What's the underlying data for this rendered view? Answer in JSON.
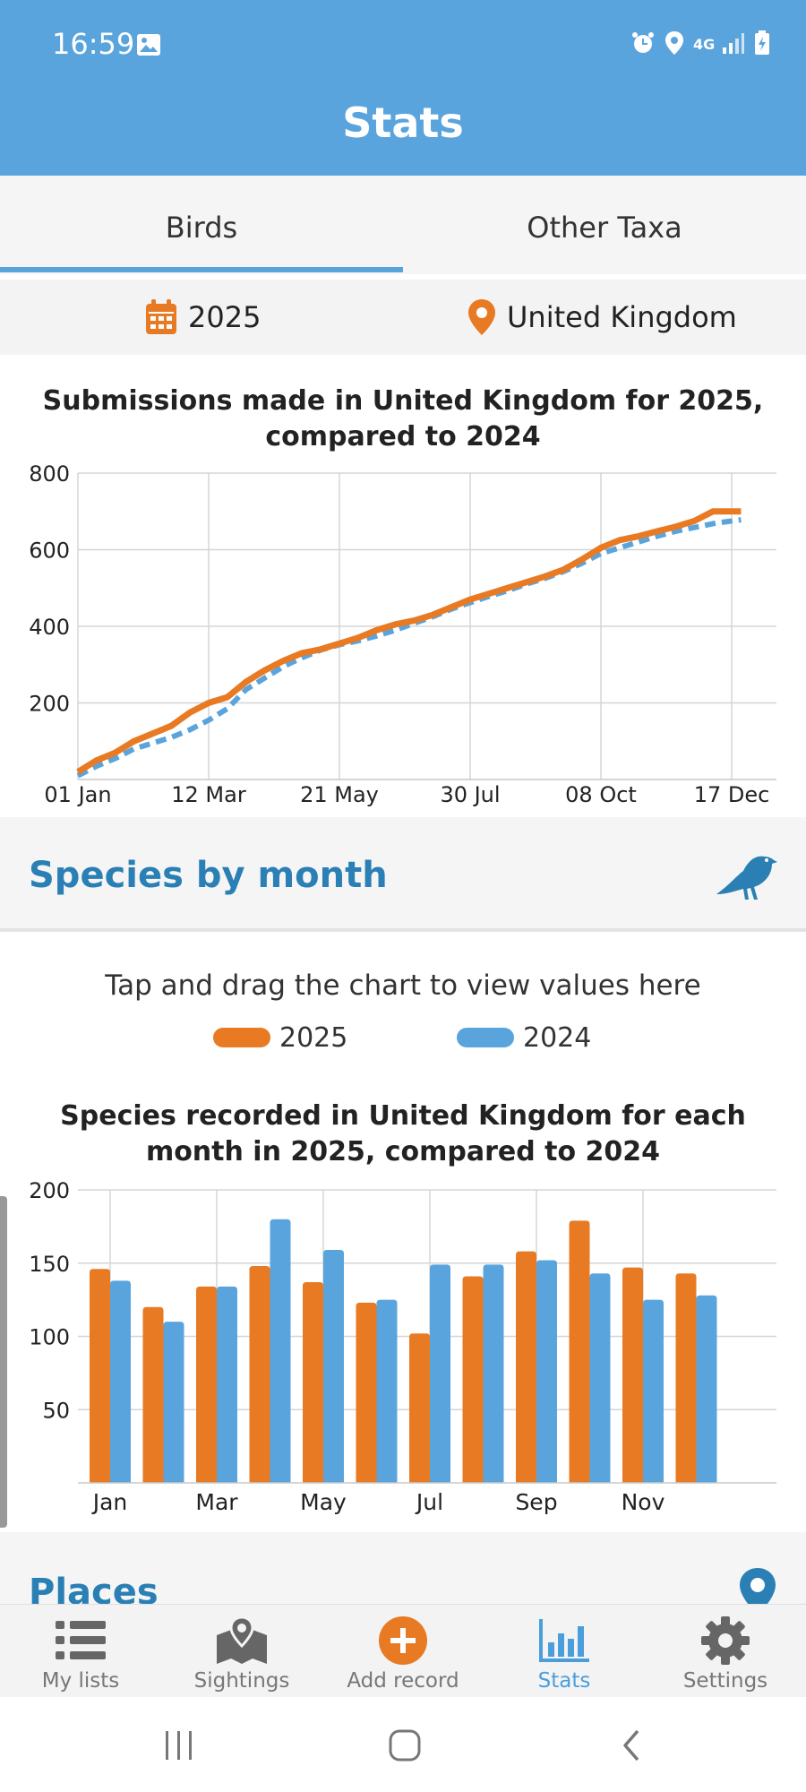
{
  "status_bar": {
    "time": "16:59",
    "network": "4G"
  },
  "app_bar": {
    "title": "Stats"
  },
  "tabs": [
    {
      "label": "Birds",
      "active": true
    },
    {
      "label": "Other Taxa",
      "active": false
    }
  ],
  "filters": {
    "year": "2025",
    "location": "United Kingdom"
  },
  "colors": {
    "primary": "#5aa4dd",
    "accent": "#e87a23",
    "series_2024": "#5aa4dd",
    "series_2025": "#e87a23",
    "section_title": "#2a7fb5"
  },
  "submissions_chart": {
    "title_line1": "Submissions made in United Kingdom for 2025,",
    "title_line2": "compared to 2024"
  },
  "species_section": {
    "title": "Species by month",
    "icon": "bird-icon"
  },
  "species_hint": "Tap and drag the chart to view values here",
  "legend": [
    {
      "label": "2025",
      "color": "#e87a23"
    },
    {
      "label": "2024",
      "color": "#5aa4dd"
    }
  ],
  "species_chart": {
    "title_line1": "Species recorded in United Kingdom for each",
    "title_line2": "month in 2025, compared to 2024"
  },
  "places_section": {
    "title": "Places",
    "icon": "location-pin-icon"
  },
  "bottom_nav": [
    {
      "label": "My lists",
      "icon": "list-icon",
      "active": false
    },
    {
      "label": "Sightings",
      "icon": "map-pin-icon",
      "active": false
    },
    {
      "label": "Add record",
      "icon": "add-circle-icon",
      "active": false
    },
    {
      "label": "Stats",
      "icon": "bar-chart-icon",
      "active": true
    },
    {
      "label": "Settings",
      "icon": "gear-icon",
      "active": false
    }
  ],
  "chart_data": [
    {
      "type": "line",
      "title": "Submissions made in United Kingdom for 2025, compared to 2024",
      "x_tick_labels": [
        "01 Jan",
        "12 Mar",
        "21 May",
        "30 Jul",
        "08 Oct",
        "17 Dec"
      ],
      "y_tick_labels": [
        "200",
        "400",
        "600",
        "800"
      ],
      "ylim": [
        0,
        800
      ],
      "grid": true,
      "x_unit": "days",
      "x": [
        0,
        10,
        20,
        30,
        40,
        50,
        60,
        70,
        80,
        90,
        100,
        110,
        120,
        130,
        140,
        150,
        160,
        170,
        180,
        190,
        200,
        210,
        220,
        230,
        240,
        250,
        260,
        270,
        280,
        290,
        300,
        310,
        320,
        330,
        340,
        350,
        355
      ],
      "series": [
        {
          "name": "2025",
          "style": "solid",
          "values": [
            20,
            50,
            70,
            100,
            120,
            140,
            175,
            200,
            215,
            255,
            285,
            310,
            330,
            340,
            355,
            370,
            390,
            405,
            415,
            430,
            450,
            470,
            485,
            500,
            515,
            530,
            548,
            575,
            605,
            625,
            635,
            648,
            660,
            675,
            700,
            700,
            700
          ]
        },
        {
          "name": "2024",
          "style": "dashed",
          "values": [
            10,
            35,
            55,
            80,
            95,
            110,
            130,
            155,
            185,
            235,
            265,
            295,
            318,
            338,
            352,
            362,
            375,
            390,
            408,
            425,
            445,
            462,
            478,
            493,
            510,
            525,
            543,
            565,
            590,
            605,
            620,
            635,
            648,
            658,
            668,
            675,
            678
          ]
        }
      ]
    },
    {
      "type": "bar",
      "title": "Species recorded in United Kingdom for each month in 2025, compared to 2024",
      "categories": [
        "Jan",
        "Feb",
        "Mar",
        "Apr",
        "May",
        "Jun",
        "Jul",
        "Aug",
        "Sep",
        "Oct",
        "Nov",
        "Dec"
      ],
      "x_tick_labels": [
        "Jan",
        "Mar",
        "May",
        "Jul",
        "Sep",
        "Nov"
      ],
      "y_tick_labels": [
        "50",
        "100",
        "150",
        "200"
      ],
      "ylim": [
        0,
        200
      ],
      "grid": true,
      "legend": "top",
      "series": [
        {
          "name": "2025",
          "values": [
            146,
            120,
            134,
            148,
            137,
            123,
            102,
            141,
            158,
            179,
            147,
            143
          ]
        },
        {
          "name": "2024",
          "values": [
            138,
            110,
            134,
            180,
            159,
            125,
            149,
            149,
            152,
            143,
            125,
            128
          ]
        }
      ]
    }
  ]
}
